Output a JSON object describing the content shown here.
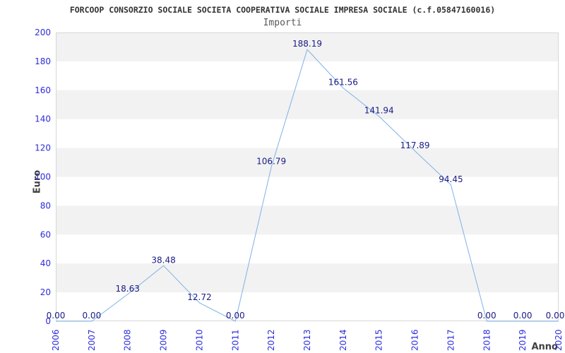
{
  "chart_data": {
    "type": "line",
    "title": "FORCOOP CONSORZIO SOCIALE SOCIETA COOPERATIVA SOCIALE IMPRESA SOCIALE (c.f.05847160016)",
    "subtitle": "Importi",
    "xlabel": "Anno",
    "ylabel": "Euro",
    "categories": [
      "2006",
      "2007",
      "2008",
      "2009",
      "2010",
      "2011",
      "2012",
      "2013",
      "2014",
      "2015",
      "2016",
      "2017",
      "2018",
      "2019",
      "2020"
    ],
    "values": [
      0,
      0,
      18.63,
      38.48,
      12.72,
      0,
      106.79,
      188.19,
      161.56,
      141.94,
      117.89,
      94.45,
      0,
      0,
      0
    ],
    "point_labels": [
      "0.00",
      "0.00",
      "18.63",
      "38.48",
      "12.72",
      "0.00",
      "106.79",
      "188.19",
      "161.56",
      "141.94",
      "117.89",
      "94.45",
      "0.00",
      "0.00",
      "0.00"
    ],
    "ylim": [
      0,
      200
    ],
    "yticks": [
      0,
      20,
      40,
      60,
      80,
      100,
      120,
      140,
      160,
      180,
      200
    ],
    "grid": "alternating-horizontal-bands",
    "legend": "none",
    "colors": {
      "line": "#7fb2e6",
      "tick_label": "#2c2cdb",
      "data_label": "#1a1a85",
      "band": "#f2f2f2",
      "plot_border": "#d6d6d6",
      "title": "#333333",
      "subtitle": "#595959",
      "axis_label": "#404040",
      "background": "#ffffff"
    }
  }
}
